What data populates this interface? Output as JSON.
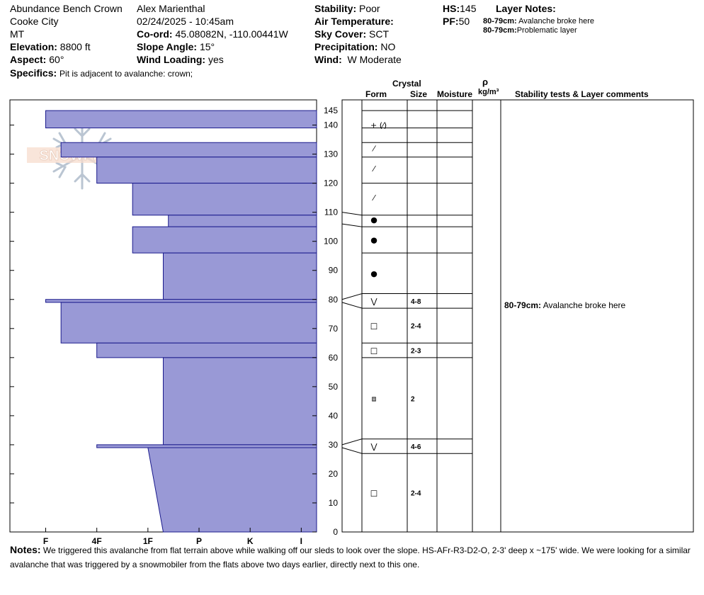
{
  "header": {
    "location": "Abundance Bench Crown",
    "observer": "Alex Marienthal",
    "range": "Cooke City",
    "datetime": "02/24/2025 - 10:45am",
    "state": "MT",
    "coord_label": "Co-ord:",
    "coord_value": "45.08082N, -110.00441W",
    "elevation_label": "Elevation:",
    "elevation_value": "8800 ft",
    "slope_label": "Slope Angle:",
    "slope_value": "15°",
    "aspect_label": "Aspect:",
    "aspect_value": "60°",
    "wind_loading_label": "Wind Loading:",
    "wind_loading_value": "yes",
    "specifics_label": "Specifics:",
    "specifics_value": "Pit is adjacent to avalanche: crown;",
    "stability_label": "Stability:",
    "stability_value": "Poor",
    "air_temp_label": "Air Temperature:",
    "sky_label": "Sky Cover:",
    "sky_value": "SCT",
    "precip_label": "Precipitation:",
    "precip_value": "NO",
    "wind_label": "Wind:",
    "wind_value": "W Moderate",
    "hs_label": "HS:",
    "hs_value": "145",
    "pf_label": "PF:",
    "pf_value": "50",
    "layer_notes_title": "Layer Notes:",
    "layer_notes": [
      {
        "range": "80-79cm:",
        "text": "Avalanche broke here"
      },
      {
        "range": "80-79cm:",
        "text": "Problematic layer"
      }
    ]
  },
  "columns": {
    "crystal": "Crystal",
    "form": "Form",
    "size": "Size",
    "moisture": "Moisture",
    "rho": "ρ",
    "density_unit": "kg/m³",
    "stability_comments": "Stability tests & Layer comments"
  },
  "logo_text": "SNOWPILOT",
  "stability_comment": {
    "range": "80-79cm:",
    "text": "Avalanche broke here"
  },
  "notes": {
    "label": "Notes:",
    "text": "We triggered this avalanche from flat terrain above while walking off our sleds to look over the slope. HS-AFr-R3-D2-O, 2-3' deep x ~175' wide. We were looking for a similar avalanche that was triggered by a snowmobiler from the flats above two days earlier, directly next to this one."
  },
  "chart_data": {
    "type": "bar",
    "title": "",
    "xlabel": "",
    "ylabel": "",
    "hardness_ticks": [
      "I",
      "K",
      "P",
      "1F",
      "4F",
      "F"
    ],
    "hardness_tick_pos": [
      0.5,
      1.5,
      2.5,
      3.5,
      4.5,
      5.5
    ],
    "xlim_hardness": [
      6.2,
      0.2
    ],
    "ylim_cm": [
      0,
      150
    ],
    "y_ticks": [
      0,
      10,
      20,
      30,
      40,
      50,
      60,
      70,
      80,
      90,
      100,
      110,
      120,
      130,
      140,
      145
    ],
    "hardness_layers": [
      {
        "top": 145,
        "bottom": 139,
        "hardness": 5.5
      },
      {
        "top": 134,
        "bottom": 129,
        "hardness": 5.2
      },
      {
        "top": 129,
        "bottom": 120,
        "hardness": 4.5
      },
      {
        "top": 120,
        "bottom": 109,
        "hardness": 3.8
      },
      {
        "top": 109,
        "bottom": 105,
        "hardness": 3.1
      },
      {
        "top": 105,
        "bottom": 96,
        "hardness": 3.8
      },
      {
        "top": 96,
        "bottom": 80,
        "hardness": 3.2
      },
      {
        "top": 80,
        "bottom": 79,
        "hardness": 5.5
      },
      {
        "top": 79,
        "bottom": 65,
        "hardness": 5.2
      },
      {
        "top": 65,
        "bottom": 60,
        "hardness": 4.5
      },
      {
        "top": 60,
        "bottom": 30,
        "hardness": 3.2
      },
      {
        "top": 30,
        "bottom": 29,
        "hardness": 4.5
      },
      {
        "top": 29,
        "bottom": 0,
        "hardness_top": 3.5,
        "hardness_bottom": 3.2
      }
    ],
    "layer_boundaries": [
      145,
      139,
      134,
      129,
      120,
      109,
      105,
      96,
      82,
      77,
      65,
      60,
      32,
      27
    ],
    "crystal_layers": [
      {
        "at": 140,
        "form": "+ (⁄)",
        "size": ""
      },
      {
        "at": 132,
        "form": "⁄",
        "size": ""
      },
      {
        "at": 125,
        "form": "⁄",
        "size": ""
      },
      {
        "at": 115,
        "form": "⁄",
        "size": ""
      },
      {
        "at": 107.5,
        "form": "●",
        "size": ""
      },
      {
        "at": 100.5,
        "form": "●",
        "size": ""
      },
      {
        "at": 89,
        "form": "●",
        "size": ""
      },
      {
        "at": 79.5,
        "form": "⋁",
        "size": "4-8"
      },
      {
        "at": 71,
        "form": "□",
        "size": "2-4"
      },
      {
        "at": 62.5,
        "form": "□",
        "size": "2-3"
      },
      {
        "at": 46,
        "form": "⧈",
        "size": "2"
      },
      {
        "at": 29.5,
        "form": "⋁",
        "size": "4-6"
      },
      {
        "at": 13.5,
        "form": "□",
        "size": "2-4"
      }
    ]
  }
}
